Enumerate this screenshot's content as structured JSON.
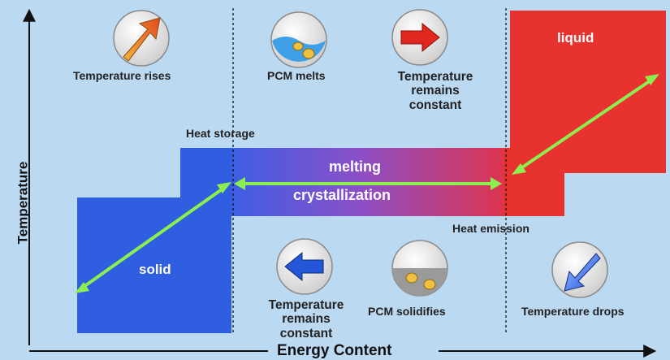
{
  "states": {
    "solid": "solid",
    "liquid": "liquid"
  },
  "band": {
    "top": "melting",
    "bottom": "crystallization"
  },
  "notes": {
    "heat_storage": "Heat storage",
    "heat_emission": "Heat emission"
  },
  "captions": {
    "temp_rises": "Temperature rises",
    "pcm_melts": "PCM melts",
    "temp_constant_top": [
      "Temperature",
      "remains",
      "constant"
    ],
    "temp_constant_bottom": [
      "Temperature",
      "remains",
      "constant"
    ],
    "pcm_solidifies": "PCM solidifies",
    "temp_drops": "Temperature drops"
  },
  "axes": {
    "x": "Energy Content",
    "y": "Temperature"
  },
  "icons": [
    "up-right-arrow-icon",
    "melting-liquid-icon",
    "right-arrow-icon",
    "left-arrow-icon",
    "solidifying-pcm-icon",
    "down-left-arrow-icon"
  ],
  "colors": {
    "background": "#bcd9f2",
    "solid": "#2f5fe0",
    "liquid": "#e8322f",
    "arrow": "#8dee4f",
    "axis": "#111111"
  }
}
